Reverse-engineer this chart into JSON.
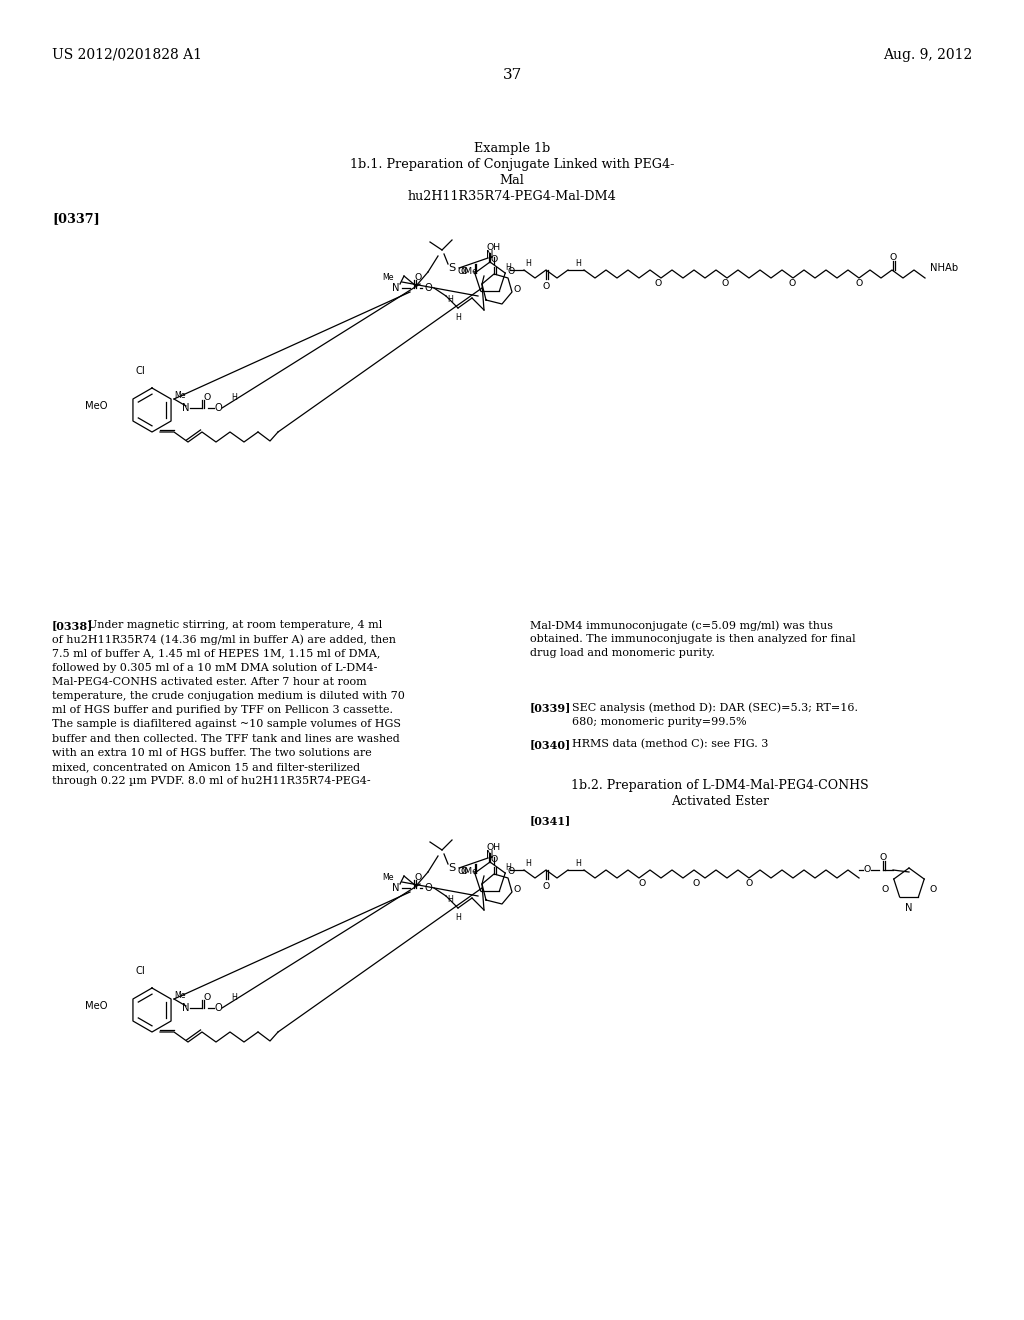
{
  "bg": "#ffffff",
  "header_left": "US 2012/0201828 A1",
  "header_right": "Aug. 9, 2012",
  "page_num": "37",
  "title1": "Example 1b",
  "title2": "1b.1. Preparation of Conjugate Linked with PEG4-",
  "title3": "Mal",
  "title4": "hu2H11R35R74-PEG4-Mal-DM4",
  "ref337": "[0337]",
  "ref338_label": "[0338]",
  "ref338_left": "Under magnetic stirring, at room temperature, 4 ml\nof hu2H11R35R74 (14.36 mg/ml in buffer A) are added, then\n7.5 ml of buffer A, 1.45 ml of HEPES 1M, 1.15 ml of DMA,\nfollowed by 0.305 ml of a 10 mM DMA solution of L-DM4-\nMal-PEG4-CONHS activated ester. After 7 hour at room\ntemperature, the crude conjugation medium is diluted with 70\nml of HGS buffer and purified by TFF on Pellicon 3 cassette.\nThe sample is diafiltered against ~10 sample volumes of HGS\nbuffer and then collected. The TFF tank and lines are washed\nwith an extra 10 ml of HGS buffer. The two solutions are\nmixed, concentrated on Amicon 15 and filter-sterilized\nthrough 0.22 µm PVDF. 8.0 ml of hu2H11R35R74-PEG4-",
  "ref338_right": "Mal-DM4 immunoconjugate (c=5.09 mg/ml) was thus\nobtained. The immunoconjugate is then analyzed for final\ndrug load and monomeric purity.",
  "ref339_label": "[0339]",
  "ref339_text": "SEC analysis (method D): DAR (SEC)=5.3; RT=16.\n680; monomeric purity=99.5%",
  "ref340_label": "[0340]",
  "ref340_text": "HRMS data (method C): see FIG. 3",
  "sub2_line1": "1b.2. Preparation of L-DM4-Mal-PEG4-CONHS",
  "sub2_line2": "Activated Ester",
  "ref341": "[0341]"
}
